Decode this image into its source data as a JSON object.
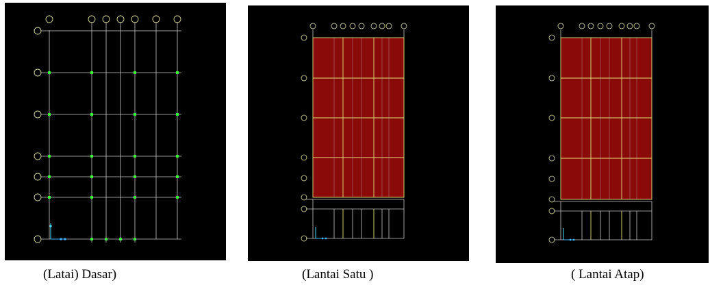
{
  "colors": {
    "background": "#000000",
    "grid": "#c8c8c8",
    "bubble": "#d9d99a",
    "joint": "#33ff33",
    "slab_fill": "#8a0a0a",
    "slab_lines": "#e2e27a",
    "axis_x": "#3fb6ff",
    "axis_y": "#3fe0ff"
  },
  "captions": [
    "(Latai) Dasar)",
    "(Lantai Satu )",
    "( Lantai Atap)"
  ],
  "views": [
    {
      "name": "Dasar",
      "slab": false
    },
    {
      "name": "Satu",
      "slab": true
    },
    {
      "name": "Atap",
      "slab": true
    }
  ]
}
